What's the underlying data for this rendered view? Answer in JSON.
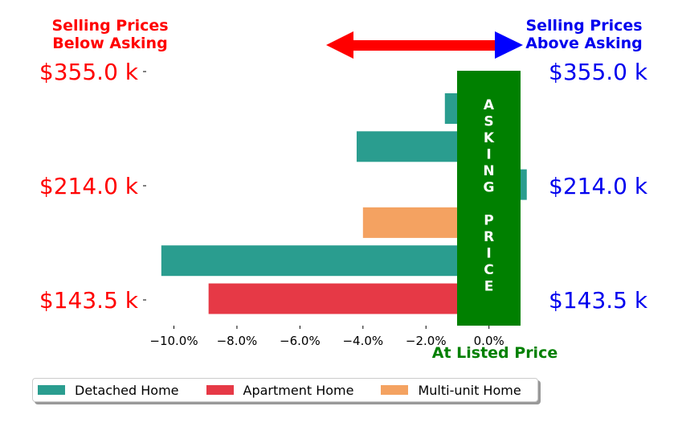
{
  "chart_data": {
    "type": "bar",
    "orientation": "horizontal",
    "header_left": [
      "Selling Prices",
      "Below Asking"
    ],
    "header_right": [
      "Selling Prices",
      "Above Asking"
    ],
    "price_labels": [
      "$355.0 k",
      "$214.0 k",
      "$143.5 k"
    ],
    "asking_price_letters": [
      "A",
      "S",
      "K",
      "I",
      "N",
      "G",
      "",
      "P",
      "R",
      "I",
      "C",
      "E"
    ],
    "xlabel": "At Listed Price",
    "xlim": [
      -11.0,
      1.2
    ],
    "x_ticks": [
      -10,
      -8,
      -6,
      -4,
      -2,
      0
    ],
    "x_tick_labels": [
      "−10.0%",
      "−8.0%",
      "−6.0%",
      "−4.0%",
      "−2.0%",
      "0.0%"
    ],
    "bars": [
      {
        "series": "Detached Home",
        "value": -1.4
      },
      {
        "series": "Detached Home",
        "value": -4.2
      },
      {
        "series": "Detached Home",
        "value": 1.2
      },
      {
        "series": "Multi-unit Home",
        "value": -4.0
      },
      {
        "series": "Detached Home",
        "value": -10.4
      },
      {
        "series": "Apartment Home",
        "value": -8.9
      }
    ],
    "series": [
      {
        "name": "Detached Home",
        "color": "#2a9d8f"
      },
      {
        "name": "Apartment Home",
        "color": "#e63946"
      },
      {
        "name": "Multi-unit Home",
        "color": "#f4a261"
      }
    ],
    "colors": {
      "below": "#ff0000",
      "above": "#0000ee",
      "asking": "#008000",
      "arrow_left": "#ff0000",
      "arrow_right": "#0000ff"
    },
    "legend_position": "bottom-left"
  }
}
